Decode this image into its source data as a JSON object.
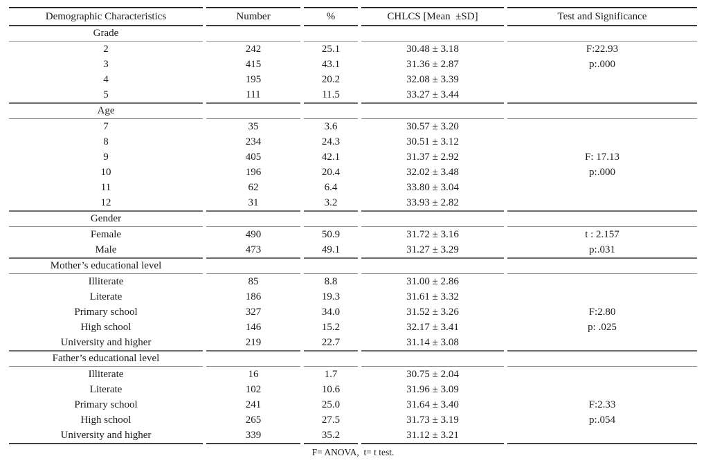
{
  "page": {
    "background": "#ffffff",
    "text_color": "#1b1b1b",
    "rule_dark": "#282828",
    "rule_gray": "#6a6a6a"
  },
  "table": {
    "columns": [
      "Demographic Characteristics",
      "Number",
      "%",
      "CHLCS [Mean  ±SD]",
      "Test and Significance"
    ],
    "sections": [
      {
        "label": "Grade",
        "rows": [
          {
            "characteristic": "2",
            "number": "242",
            "percent": "25.1",
            "chlcs": "30.48 ± 3.18",
            "test": "F:22.93"
          },
          {
            "characteristic": "3",
            "number": "415",
            "percent": "43.1",
            "chlcs": "31.36 ± 2.87",
            "test": "p:.000"
          },
          {
            "characteristic": "4",
            "number": "195",
            "percent": "20.2",
            "chlcs": "32.08 ± 3.39",
            "test": ""
          },
          {
            "characteristic": "5",
            "number": "111",
            "percent": "11.5",
            "chlcs": "33.27 ± 3.44",
            "test": ""
          }
        ]
      },
      {
        "label": "Age",
        "rows": [
          {
            "characteristic": "7",
            "number": "35",
            "percent": "3.6",
            "chlcs": "30.57 ± 3.20",
            "test": ""
          },
          {
            "characteristic": "8",
            "number": "234",
            "percent": "24.3",
            "chlcs": "30.51 ± 3.12",
            "test": ""
          },
          {
            "characteristic": "9",
            "number": "405",
            "percent": "42.1",
            "chlcs": "31.37 ± 2.92",
            "test": "F: 17.13"
          },
          {
            "characteristic": "10",
            "number": "196",
            "percent": "20.4",
            "chlcs": "32.02 ± 3.48",
            "test": "p:.000"
          },
          {
            "characteristic": "11",
            "number": "62",
            "percent": "6.4",
            "chlcs": "33.80 ± 3.04",
            "test": ""
          },
          {
            "characteristic": "12",
            "number": "31",
            "percent": "3.2",
            "chlcs": "33.93 ± 2.82",
            "test": ""
          }
        ]
      },
      {
        "label": "Gender",
        "rows": [
          {
            "characteristic": "Female",
            "number": "490",
            "percent": "50.9",
            "chlcs": "31.72 ± 3.16",
            "test": "t : 2.157"
          },
          {
            "characteristic": "Male",
            "number": "473",
            "percent": "49.1",
            "chlcs": "31.27 ± 3.29",
            "test": "p:.031"
          }
        ]
      },
      {
        "label": "Mother’s educational level",
        "rows": [
          {
            "characteristic": "Illiterate",
            "number": "85",
            "percent": "8.8",
            "chlcs": "31.00 ± 2.86",
            "test": ""
          },
          {
            "characteristic": "Literate",
            "number": "186",
            "percent": "19.3",
            "chlcs": "31.61 ± 3.32",
            "test": ""
          },
          {
            "characteristic": "Primary school",
            "number": "327",
            "percent": "34.0",
            "chlcs": "31.52 ± 3.26",
            "test": "F:2.80"
          },
          {
            "characteristic": "High school",
            "number": "146",
            "percent": "15.2",
            "chlcs": "32.17 ± 3.41",
            "test": "p: .025"
          },
          {
            "characteristic": "University and higher",
            "number": "219",
            "percent": "22.7",
            "chlcs": "31.14 ± 3.08",
            "test": ""
          }
        ]
      },
      {
        "label": "Father’s educational level",
        "rows": [
          {
            "characteristic": "Illiterate",
            "number": "16",
            "percent": "1.7",
            "chlcs": "30.75 ± 2.04",
            "test": ""
          },
          {
            "characteristic": "Literate",
            "number": "102",
            "percent": "10.6",
            "chlcs": "31.96 ± 3.09",
            "test": ""
          },
          {
            "characteristic": "Primary school",
            "number": "241",
            "percent": "25.0",
            "chlcs": "31.64 ± 3.40",
            "test": "F:2.33"
          },
          {
            "characteristic": "High school",
            "number": "265",
            "percent": "27.5",
            "chlcs": "31.73 ± 3.19",
            "test": "p:.054"
          },
          {
            "characteristic": "University and higher",
            "number": "339",
            "percent": "35.2",
            "chlcs": "31.12 ± 3.21",
            "test": ""
          }
        ]
      }
    ],
    "footnote": "F= ANOVA,  t= t test."
  }
}
